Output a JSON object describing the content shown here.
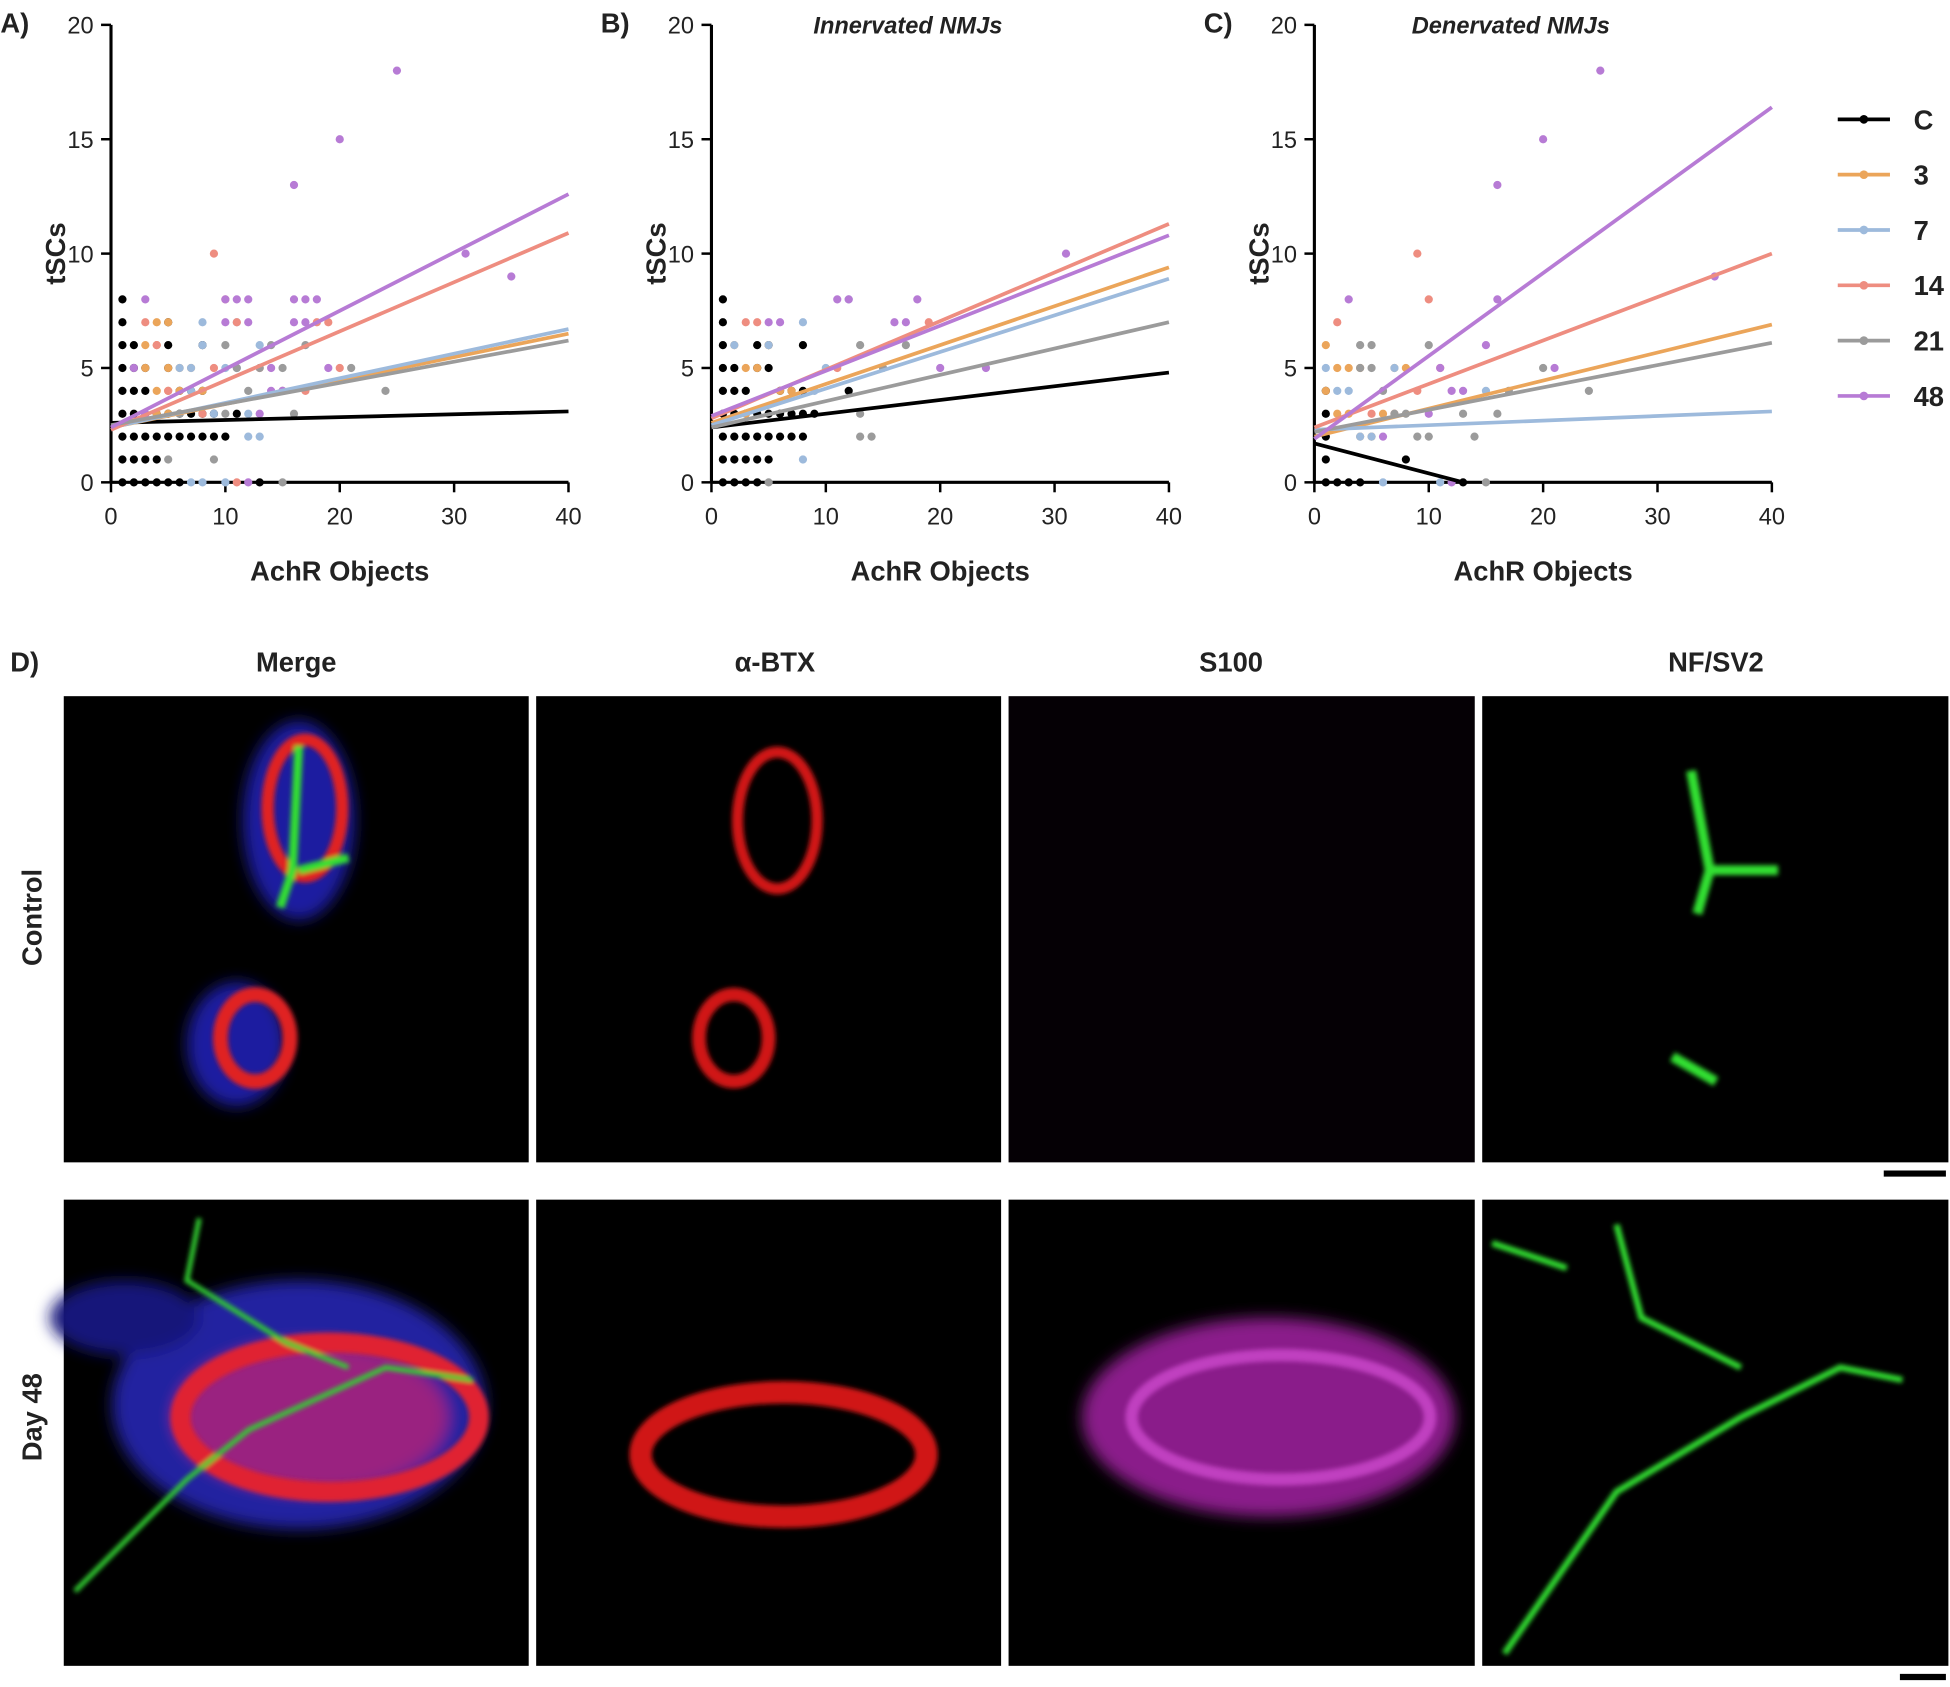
{
  "chart_data": [
    {
      "type": "scatter",
      "panel_label": "A)",
      "xlabel": "AchR Objects",
      "ylabel": "tSCs",
      "xlim": [
        0,
        40
      ],
      "ylim": [
        0,
        20
      ],
      "xticks": [
        0,
        10,
        20,
        30,
        40
      ],
      "yticks": [
        0,
        5,
        10,
        15,
        20
      ],
      "series": [
        {
          "color": "#000000",
          "x": [
            1,
            2,
            3,
            4,
            5,
            6,
            1,
            2,
            3,
            4,
            1,
            2,
            3,
            4,
            5,
            6,
            7,
            8,
            9,
            10,
            1,
            2,
            3,
            4,
            5,
            6,
            7,
            8,
            9,
            11,
            1,
            2,
            3,
            6,
            7,
            8,
            1,
            2,
            3,
            5,
            1,
            2,
            5,
            1,
            5,
            1,
            8,
            13
          ],
          "y": [
            0,
            0,
            0,
            0,
            0,
            0,
            1,
            1,
            1,
            1,
            2,
            2,
            2,
            2,
            2,
            2,
            2,
            2,
            2,
            2,
            3,
            3,
            3,
            3,
            3,
            3,
            3,
            3,
            3,
            3,
            4,
            4,
            4,
            4,
            4,
            4,
            5,
            5,
            5,
            5,
            6,
            6,
            6,
            7,
            7,
            8,
            6,
            0
          ],
          "fit_x": [
            0,
            40
          ],
          "fit_y": [
            2.6,
            3.1
          ]
        },
        {
          "color": "#eba55a",
          "x": [
            4,
            5,
            3,
            4,
            3,
            5,
            6,
            7,
            4,
            5,
            6,
            8,
            5,
            4
          ],
          "y": [
            7,
            7,
            6,
            6,
            5,
            5,
            5,
            5,
            4,
            4,
            4,
            4,
            3,
            3
          ],
          "fit_x": [
            0,
            40
          ],
          "fit_y": [
            2.4,
            6.5
          ]
        },
        {
          "color": "#9dbadc",
          "x": [
            7,
            8,
            10,
            6,
            7,
            8,
            8,
            10,
            11,
            7,
            12,
            12,
            13,
            15,
            9,
            11,
            13
          ],
          "y": [
            0,
            0,
            0,
            5,
            5,
            6,
            7,
            5,
            5,
            4,
            3,
            2,
            2,
            4,
            3,
            7,
            6
          ],
          "fit_x": [
            0,
            40
          ],
          "fit_y": [
            2.4,
            6.7
          ]
        },
        {
          "color": "#ee8d80",
          "x": [
            9,
            10,
            11,
            13,
            15,
            17,
            19,
            20,
            3,
            4,
            5,
            9,
            11,
            8,
            18
          ],
          "y": [
            10,
            8,
            7,
            5,
            4,
            4,
            7,
            5,
            7,
            6,
            4,
            5,
            0,
            3,
            7
          ],
          "fit_x": [
            0,
            40
          ],
          "fit_y": [
            2.3,
            10.9
          ]
        },
        {
          "color": "#9b9b9b",
          "x": [
            5,
            6,
            10,
            11,
            12,
            14,
            15,
            16,
            17,
            13,
            10,
            24,
            21,
            15,
            9
          ],
          "y": [
            1,
            3,
            6,
            5,
            4,
            6,
            5,
            3,
            6,
            5,
            3,
            4,
            5,
            0,
            1
          ],
          "fit_x": [
            0,
            40
          ],
          "fit_y": [
            2.5,
            6.2
          ]
        },
        {
          "color": "#b77bd5",
          "x": [
            3,
            10,
            11,
            12,
            16,
            17,
            18,
            16,
            20,
            25,
            31,
            35,
            16,
            17,
            12,
            10,
            19,
            14,
            15,
            13,
            2,
            3,
            12,
            14
          ],
          "y": [
            8,
            8,
            8,
            8,
            8,
            8,
            8,
            13,
            15,
            18,
            10,
            9,
            7,
            7,
            7,
            7,
            5,
            5,
            4,
            3,
            5,
            3,
            0,
            4
          ],
          "fit_x": [
            0,
            40
          ],
          "fit_y": [
            2.4,
            12.6
          ]
        }
      ]
    },
    {
      "type": "scatter",
      "panel_label": "B)",
      "title": "Innervated NMJs",
      "xlabel": "AchR Objects",
      "ylabel": "tSCs",
      "xlim": [
        0,
        40
      ],
      "ylim": [
        0,
        20
      ],
      "xticks": [
        0,
        10,
        20,
        30,
        40
      ],
      "yticks": [
        0,
        5,
        10,
        15,
        20
      ],
      "series": [
        {
          "color": "#000000",
          "x": [
            1,
            2,
            3,
            4,
            1,
            2,
            3,
            4,
            5,
            1,
            2,
            3,
            4,
            5,
            6,
            7,
            8,
            1,
            2,
            3,
            4,
            5,
            6,
            7,
            8,
            9,
            1,
            2,
            3,
            6,
            7,
            8,
            12,
            1,
            2,
            4,
            5,
            1,
            4,
            5,
            1,
            1,
            8
          ],
          "y": [
            0,
            0,
            0,
            0,
            1,
            1,
            1,
            1,
            1,
            2,
            2,
            2,
            2,
            2,
            2,
            2,
            2,
            3,
            3,
            3,
            3,
            3,
            3,
            3,
            3,
            3,
            4,
            4,
            4,
            4,
            4,
            4,
            4,
            5,
            5,
            5,
            5,
            6,
            6,
            6,
            7,
            8,
            6
          ],
          "fit_x": [
            0,
            40
          ],
          "fit_y": [
            2.4,
            4.8
          ]
        },
        {
          "color": "#eba55a",
          "x": [
            3,
            4,
            6,
            7,
            3,
            2,
            5
          ],
          "y": [
            5,
            5,
            4,
            4,
            3,
            6,
            6
          ],
          "fit_x": [
            0,
            40
          ],
          "fit_y": [
            2.6,
            9.4
          ]
        },
        {
          "color": "#9dbadc",
          "x": [
            5,
            8,
            12,
            8,
            10,
            2,
            9
          ],
          "y": [
            6,
            7,
            8,
            1,
            5,
            6,
            4
          ],
          "fit_x": [
            0,
            40
          ],
          "fit_y": [
            2.5,
            8.9
          ]
        },
        {
          "color": "#ee8d80",
          "x": [
            3,
            4,
            19,
            11
          ],
          "y": [
            7,
            7,
            7,
            5
          ],
          "fit_x": [
            0,
            40
          ],
          "fit_y": [
            2.8,
            11.3
          ]
        },
        {
          "color": "#9b9b9b",
          "x": [
            13,
            17,
            13,
            14,
            15,
            5,
            13
          ],
          "y": [
            6,
            6,
            3,
            2,
            5,
            0,
            2
          ],
          "fit_x": [
            0,
            40
          ],
          "fit_y": [
            2.4,
            7.0
          ]
        },
        {
          "color": "#b77bd5",
          "x": [
            31,
            11,
            12,
            16,
            17,
            18,
            20,
            24,
            5,
            6
          ],
          "y": [
            10,
            8,
            8,
            7,
            7,
            8,
            5,
            5,
            7,
            7
          ],
          "fit_x": [
            0,
            40
          ],
          "fit_y": [
            2.9,
            10.8
          ]
        }
      ]
    },
    {
      "type": "scatter",
      "panel_label": "C)",
      "title": "Denervated NMJs",
      "xlabel": "AchR Objects",
      "ylabel": "tSCs",
      "xlim": [
        0,
        40
      ],
      "ylim": [
        0,
        20
      ],
      "xticks": [
        0,
        10,
        20,
        30,
        40
      ],
      "yticks": [
        0,
        5,
        10,
        15,
        20
      ],
      "series": [
        {
          "name": "C",
          "color": "#000000",
          "x": [
            1,
            2,
            3,
            4,
            1,
            1,
            1,
            1,
            8,
            13
          ],
          "y": [
            0,
            0,
            0,
            0,
            1,
            2,
            3,
            4,
            1,
            0
          ],
          "fit_x": [
            0,
            13
          ],
          "fit_y": [
            1.7,
            0
          ]
        },
        {
          "name": "3",
          "color": "#eba55a",
          "x": [
            1,
            2,
            3,
            4,
            1,
            2,
            3,
            4,
            5,
            6,
            7,
            8
          ],
          "y": [
            6,
            5,
            5,
            5,
            4,
            3,
            3,
            2,
            2,
            3,
            5,
            5
          ],
          "fit_x": [
            0,
            40
          ],
          "fit_y": [
            2.0,
            6.9
          ]
        },
        {
          "name": "7",
          "color": "#9dbadc",
          "x": [
            1,
            2,
            3,
            4,
            5,
            6,
            15,
            11,
            7
          ],
          "y": [
            5,
            4,
            4,
            2,
            2,
            0,
            4,
            0,
            5
          ],
          "fit_x": [
            0,
            40
          ],
          "fit_y": [
            2.3,
            3.1
          ]
        },
        {
          "name": "14",
          "color": "#ee8d80",
          "x": [
            2,
            9,
            10,
            11,
            9,
            5,
            7
          ],
          "y": [
            7,
            10,
            8,
            5,
            4,
            3,
            3
          ],
          "fit_x": [
            0,
            40
          ],
          "fit_y": [
            2.4,
            10
          ]
        },
        {
          "name": "21",
          "color": "#9b9b9b",
          "x": [
            4,
            5,
            4,
            5,
            6,
            7,
            8,
            9,
            10,
            13,
            15,
            16,
            17,
            20,
            24,
            14,
            10
          ],
          "y": [
            6,
            6,
            5,
            5,
            4,
            3,
            3,
            2,
            6,
            3,
            0,
            3,
            4,
            5,
            4,
            2,
            2
          ],
          "fit_x": [
            0,
            40
          ],
          "fit_y": [
            2.2,
            6.1
          ]
        },
        {
          "name": "48",
          "color": "#b77bd5",
          "x": [
            3,
            16,
            20,
            25,
            35,
            16,
            15,
            11,
            12,
            10,
            13,
            21,
            6,
            12
          ],
          "y": [
            8,
            13,
            15,
            18,
            9,
            8,
            6,
            5,
            4,
            3,
            4,
            5,
            2,
            0
          ],
          "fit_x": [
            0,
            40
          ],
          "fit_y": [
            1.9,
            16.4
          ]
        }
      ]
    }
  ],
  "panel_d": {
    "label": "D)",
    "columns": [
      "Merge",
      "α-BTX",
      "S100",
      "NF/SV2"
    ],
    "rows": [
      "Control",
      "Day 48"
    ]
  }
}
